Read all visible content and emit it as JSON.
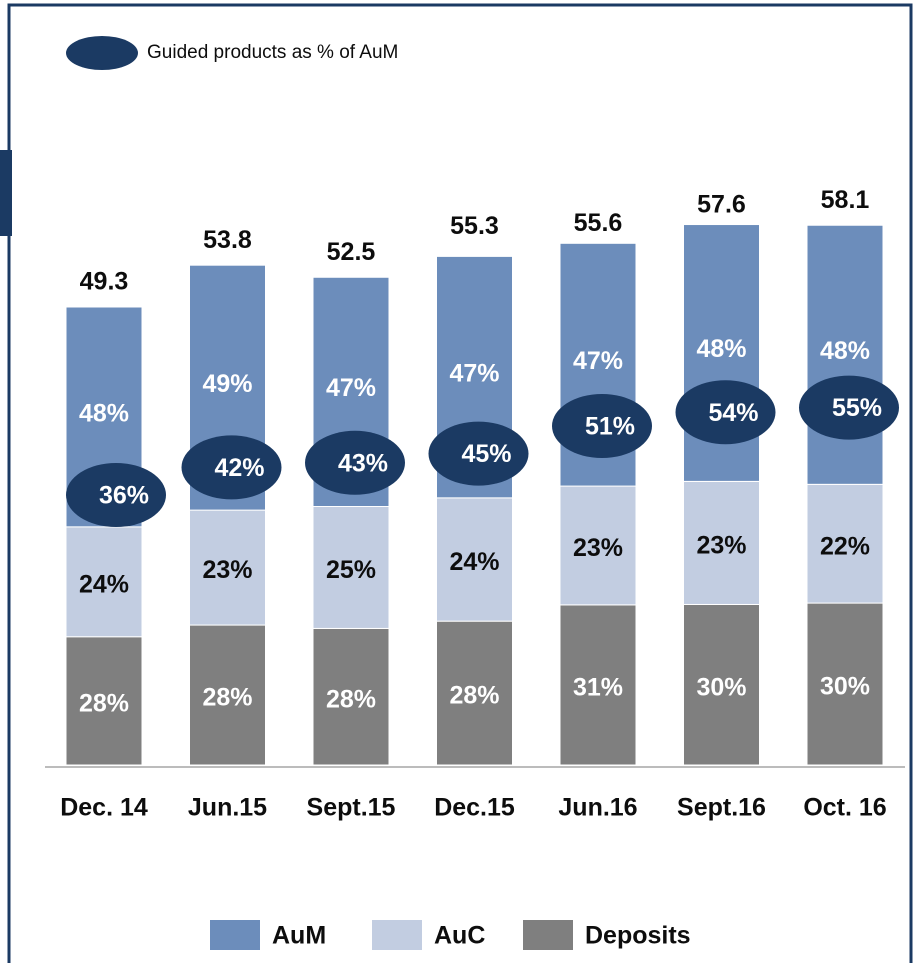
{
  "chart_data": {
    "type": "bar",
    "categories": [
      "Dec. 14",
      "Jun.15",
      "Sept.15",
      "Dec.15",
      "Jun.16",
      "Sept.16",
      "Oct. 16"
    ],
    "totals": [
      49.3,
      53.8,
      52.5,
      55.3,
      55.6,
      57.6,
      58.1
    ],
    "series": [
      {
        "name": "Deposits",
        "color": "#7f7f7f",
        "label_color": "#ffffff",
        "values": [
          28,
          28,
          28,
          28,
          31,
          30,
          30
        ],
        "value_labels": [
          "28%",
          "28%",
          "28%",
          "28%",
          "31%",
          "30%",
          "30%"
        ]
      },
      {
        "name": "AuC",
        "color": "#c2cde1",
        "label_color": "#0d0d0d",
        "values": [
          24,
          23,
          25,
          24,
          23,
          23,
          22
        ],
        "value_labels": [
          "24%",
          "23%",
          "25%",
          "24%",
          "23%",
          "23%",
          "22%"
        ]
      },
      {
        "name": "AuM",
        "color": "#6c8dbb",
        "label_color": "#ffffff",
        "values": [
          48,
          49,
          47,
          47,
          47,
          48,
          48
        ],
        "value_labels": [
          "48%",
          "49%",
          "47%",
          "47%",
          "47%",
          "48%",
          "48%"
        ]
      }
    ],
    "guided": {
      "name": "Guided products as % of AuM",
      "color": "#1b3a63",
      "values": [
        36,
        42,
        43,
        45,
        51,
        54,
        55
      ],
      "value_labels": [
        "36%",
        "42%",
        "43%",
        "45%",
        "51%",
        "54%",
        "55%"
      ]
    }
  }
}
